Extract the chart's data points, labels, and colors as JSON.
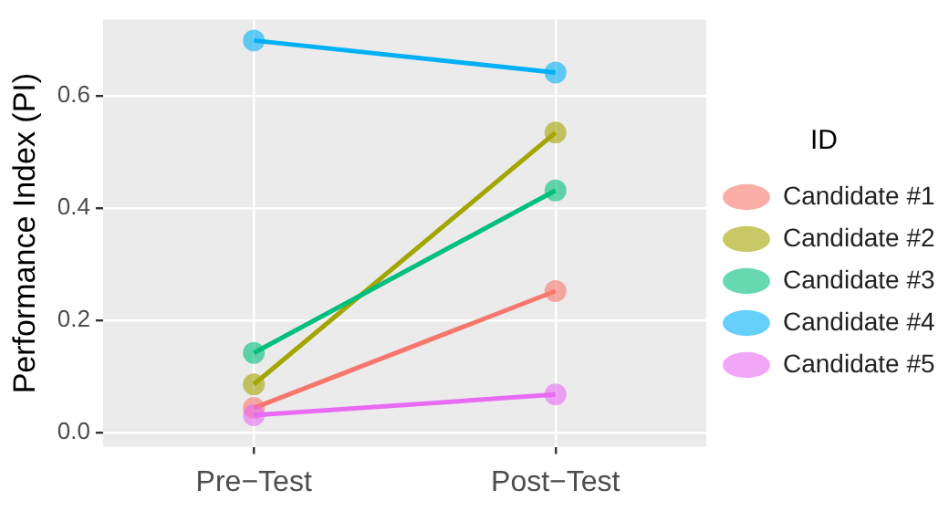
{
  "chart_data": {
    "type": "line",
    "ylabel": "Performance Index (PI)",
    "legend_title": "ID",
    "categories": [
      "Pre−Test",
      "Post−Test"
    ],
    "series": [
      {
        "name": "Candidate #1",
        "color": "#f8766d",
        "values": [
          0.044,
          0.252
        ]
      },
      {
        "name": "Candidate #2",
        "color": "#a3a500",
        "values": [
          0.086,
          0.534
        ]
      },
      {
        "name": "Candidate #3",
        "color": "#00bf7d",
        "values": [
          0.142,
          0.431
        ]
      },
      {
        "name": "Candidate #4",
        "color": "#00b0f6",
        "values": [
          0.698,
          0.641
        ]
      },
      {
        "name": "Candidate #5",
        "color": "#e76bf3",
        "values": [
          0.031,
          0.068
        ]
      }
    ],
    "ylim": [
      -0.025,
      0.735
    ],
    "yticks": [
      {
        "value": 0,
        "label": "0.0"
      },
      {
        "value": 0.2,
        "label": "0.2"
      },
      {
        "value": 0.4,
        "label": "0.4"
      },
      {
        "value": 0.6,
        "label": "0.6"
      }
    ],
    "grid": true,
    "legend": "right",
    "marker": "circle",
    "line_style": "solid"
  }
}
